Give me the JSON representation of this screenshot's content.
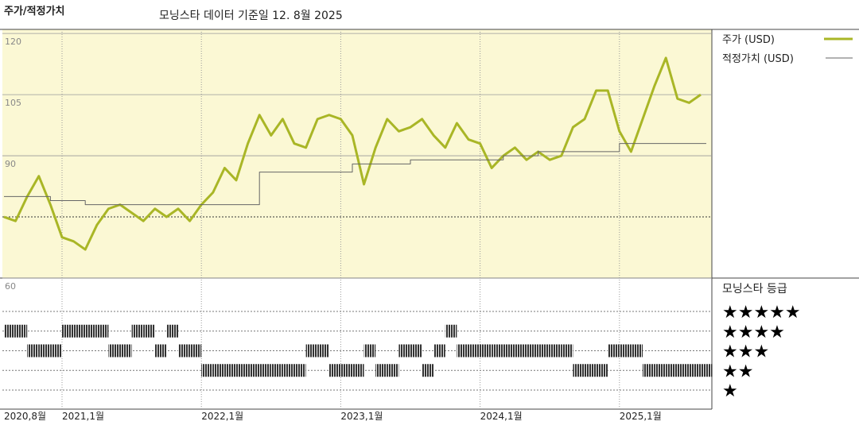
{
  "chart_data": {
    "type": "line",
    "title": "주가/적정가치",
    "subtitle": "모닝스타 데이터 기준일 12. 8월 2025",
    "x": [
      "2020-08",
      "2020-09",
      "2020-10",
      "2020-11",
      "2020-12",
      "2021-01",
      "2021-02",
      "2021-03",
      "2021-04",
      "2021-05",
      "2021-06",
      "2021-07",
      "2021-08",
      "2021-09",
      "2021-10",
      "2021-11",
      "2021-12",
      "2022-01",
      "2022-02",
      "2022-03",
      "2022-04",
      "2022-05",
      "2022-06",
      "2022-07",
      "2022-08",
      "2022-09",
      "2022-10",
      "2022-11",
      "2022-12",
      "2023-01",
      "2023-02",
      "2023-03",
      "2023-04",
      "2023-05",
      "2023-06",
      "2023-07",
      "2023-08",
      "2023-09",
      "2023-10",
      "2023-11",
      "2023-12",
      "2024-01",
      "2024-02",
      "2024-03",
      "2024-04",
      "2024-05",
      "2024-06",
      "2024-07",
      "2024-08",
      "2024-09",
      "2024-10",
      "2024-11",
      "2024-12",
      "2025-01",
      "2025-02",
      "2025-03",
      "2025-04",
      "2025-05",
      "2025-06",
      "2025-07",
      "2025-08"
    ],
    "series": [
      {
        "name": "주가 (USD)",
        "color": "#a9b626",
        "width": 3,
        "values": [
          75,
          74,
          80,
          85,
          78,
          70,
          69,
          67,
          73,
          77,
          78,
          76,
          74,
          77,
          75,
          77,
          74,
          78,
          81,
          87,
          84,
          93,
          100,
          95,
          99,
          93,
          92,
          99,
          100,
          99,
          95,
          83,
          92,
          99,
          96,
          97,
          99,
          95,
          92,
          98,
          94,
          93,
          87,
          90,
          92,
          89,
          91,
          89,
          90,
          97,
          99,
          106,
          106,
          96,
          91,
          99,
          107,
          114,
          104,
          103,
          105
        ]
      },
      {
        "name": "적정가치 (USD)",
        "color": "#666666",
        "width": 1,
        "step": true,
        "values": [
          80,
          80,
          80,
          80,
          79,
          79,
          79,
          78,
          78,
          78,
          78,
          78,
          78,
          78,
          78,
          78,
          78,
          78,
          78,
          78,
          78,
          78,
          86,
          86,
          86,
          86,
          86,
          86,
          86,
          86,
          88,
          88,
          88,
          88,
          88,
          89,
          89,
          89,
          89,
          89,
          89,
          89,
          89,
          90,
          90,
          90,
          91,
          91,
          91,
          91,
          91,
          91,
          91,
          93,
          93,
          93,
          93,
          93,
          93,
          93,
          93
        ]
      }
    ],
    "ylim": [
      60,
      121
    ],
    "yticks": [
      60,
      90,
      105,
      120
    ],
    "minor_gridlines": [
      75
    ],
    "xticks": [
      {
        "value": "2020-08",
        "label": "2020,8월"
      },
      {
        "value": "2021-01",
        "label": "2021,1월"
      },
      {
        "value": "2022-01",
        "label": "2022,1월"
      },
      {
        "value": "2023-01",
        "label": "2023,1월"
      },
      {
        "value": "2024-01",
        "label": "2024,1월"
      },
      {
        "value": "2025-01",
        "label": "2025,1월"
      }
    ],
    "grid": true,
    "ratings": {
      "name": "모닝스타 등급",
      "color": "#333333",
      "values": [
        4,
        4,
        3,
        3,
        3,
        4,
        4,
        4,
        4,
        3,
        3,
        4,
        4,
        3,
        4,
        3,
        3,
        2,
        2,
        2,
        2,
        2,
        2,
        2,
        2,
        2,
        3,
        3,
        2,
        2,
        2,
        3,
        2,
        2,
        3,
        3,
        2,
        3,
        4,
        3,
        3,
        3,
        3,
        3,
        3,
        3,
        3,
        3,
        3,
        2,
        2,
        2,
        3,
        3,
        3,
        2,
        2,
        2,
        2,
        2,
        2
      ],
      "ticks": [
        {
          "value": 5,
          "label": "★★★★★"
        },
        {
          "value": 4,
          "label": "★★★★"
        },
        {
          "value": 3,
          "label": "★★★"
        },
        {
          "value": 2,
          "label": "★★"
        },
        {
          "value": 1,
          "label": "★"
        }
      ]
    }
  }
}
